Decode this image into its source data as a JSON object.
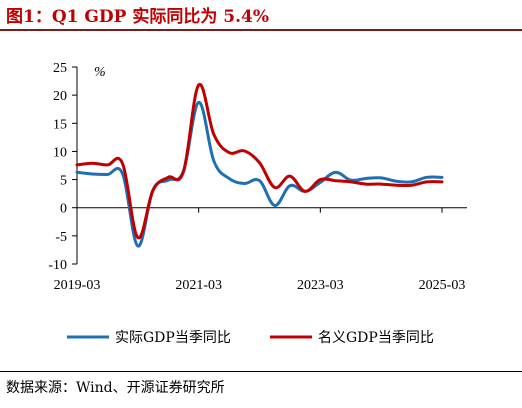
{
  "title": "图1：Q1 GDP 实际同比为 5.4%",
  "source": "数据来源：Wind、开源证券研究所",
  "chart_data": {
    "type": "line",
    "ylabel": "%",
    "ylim": [
      -10,
      25
    ],
    "yticks": [
      -10,
      -5,
      0,
      5,
      10,
      15,
      20,
      25
    ],
    "xticks": [
      "2019-03",
      "2021-03",
      "2023-03",
      "2025-03"
    ],
    "x": [
      "2019-03",
      "2019-06",
      "2019-09",
      "2019-12",
      "2020-03",
      "2020-06",
      "2020-09",
      "2020-12",
      "2021-03",
      "2021-06",
      "2021-09",
      "2021-12",
      "2022-03",
      "2022-06",
      "2022-09",
      "2022-12",
      "2023-03",
      "2023-06",
      "2023-09",
      "2023-12",
      "2024-03",
      "2024-06",
      "2024-09",
      "2024-12",
      "2025-03"
    ],
    "series": [
      {
        "name": "实际GDP当季同比",
        "color": "#1f6fb5",
        "values": [
          6.3,
          6.0,
          5.9,
          6.0,
          -6.8,
          3.2,
          4.9,
          6.5,
          18.7,
          8.3,
          5.2,
          4.3,
          4.8,
          0.4,
          3.9,
          2.9,
          4.5,
          6.3,
          4.9,
          5.2,
          5.3,
          4.7,
          4.6,
          5.4,
          5.4
        ]
      },
      {
        "name": "名义GDP当季同比",
        "color": "#c00000",
        "values": [
          7.6,
          7.9,
          7.6,
          7.8,
          -5.3,
          3.1,
          5.4,
          6.4,
          21.8,
          13.0,
          9.8,
          10.1,
          8.0,
          3.6,
          5.6,
          2.9,
          5.0,
          4.8,
          4.6,
          4.2,
          4.2,
          4.0,
          4.0,
          4.6,
          4.6
        ]
      }
    ]
  }
}
